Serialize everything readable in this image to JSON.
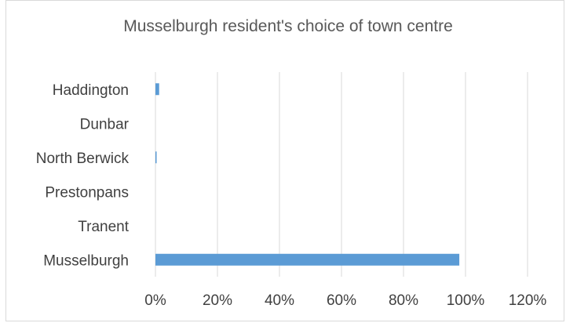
{
  "chart_data": {
    "type": "bar",
    "orientation": "horizontal",
    "title": "Musselburgh resident's choice of town centre",
    "categories": [
      "Musselburgh",
      "Tranent",
      "Prestonpans",
      "North Berwick",
      "Dunbar",
      "Haddington"
    ],
    "values": [
      98,
      0,
      0,
      0.3,
      0,
      1.2
    ],
    "xlim": [
      0,
      120
    ],
    "xticks": [
      0,
      20,
      40,
      60,
      80,
      100,
      120
    ],
    "xtick_labels": [
      "0%",
      "20%",
      "40%",
      "60%",
      "80%",
      "100%",
      "120%"
    ],
    "xlabel": "",
    "ylabel": "",
    "grid": "vertical",
    "legend": "none",
    "bar_color": "#5b9bd5"
  }
}
